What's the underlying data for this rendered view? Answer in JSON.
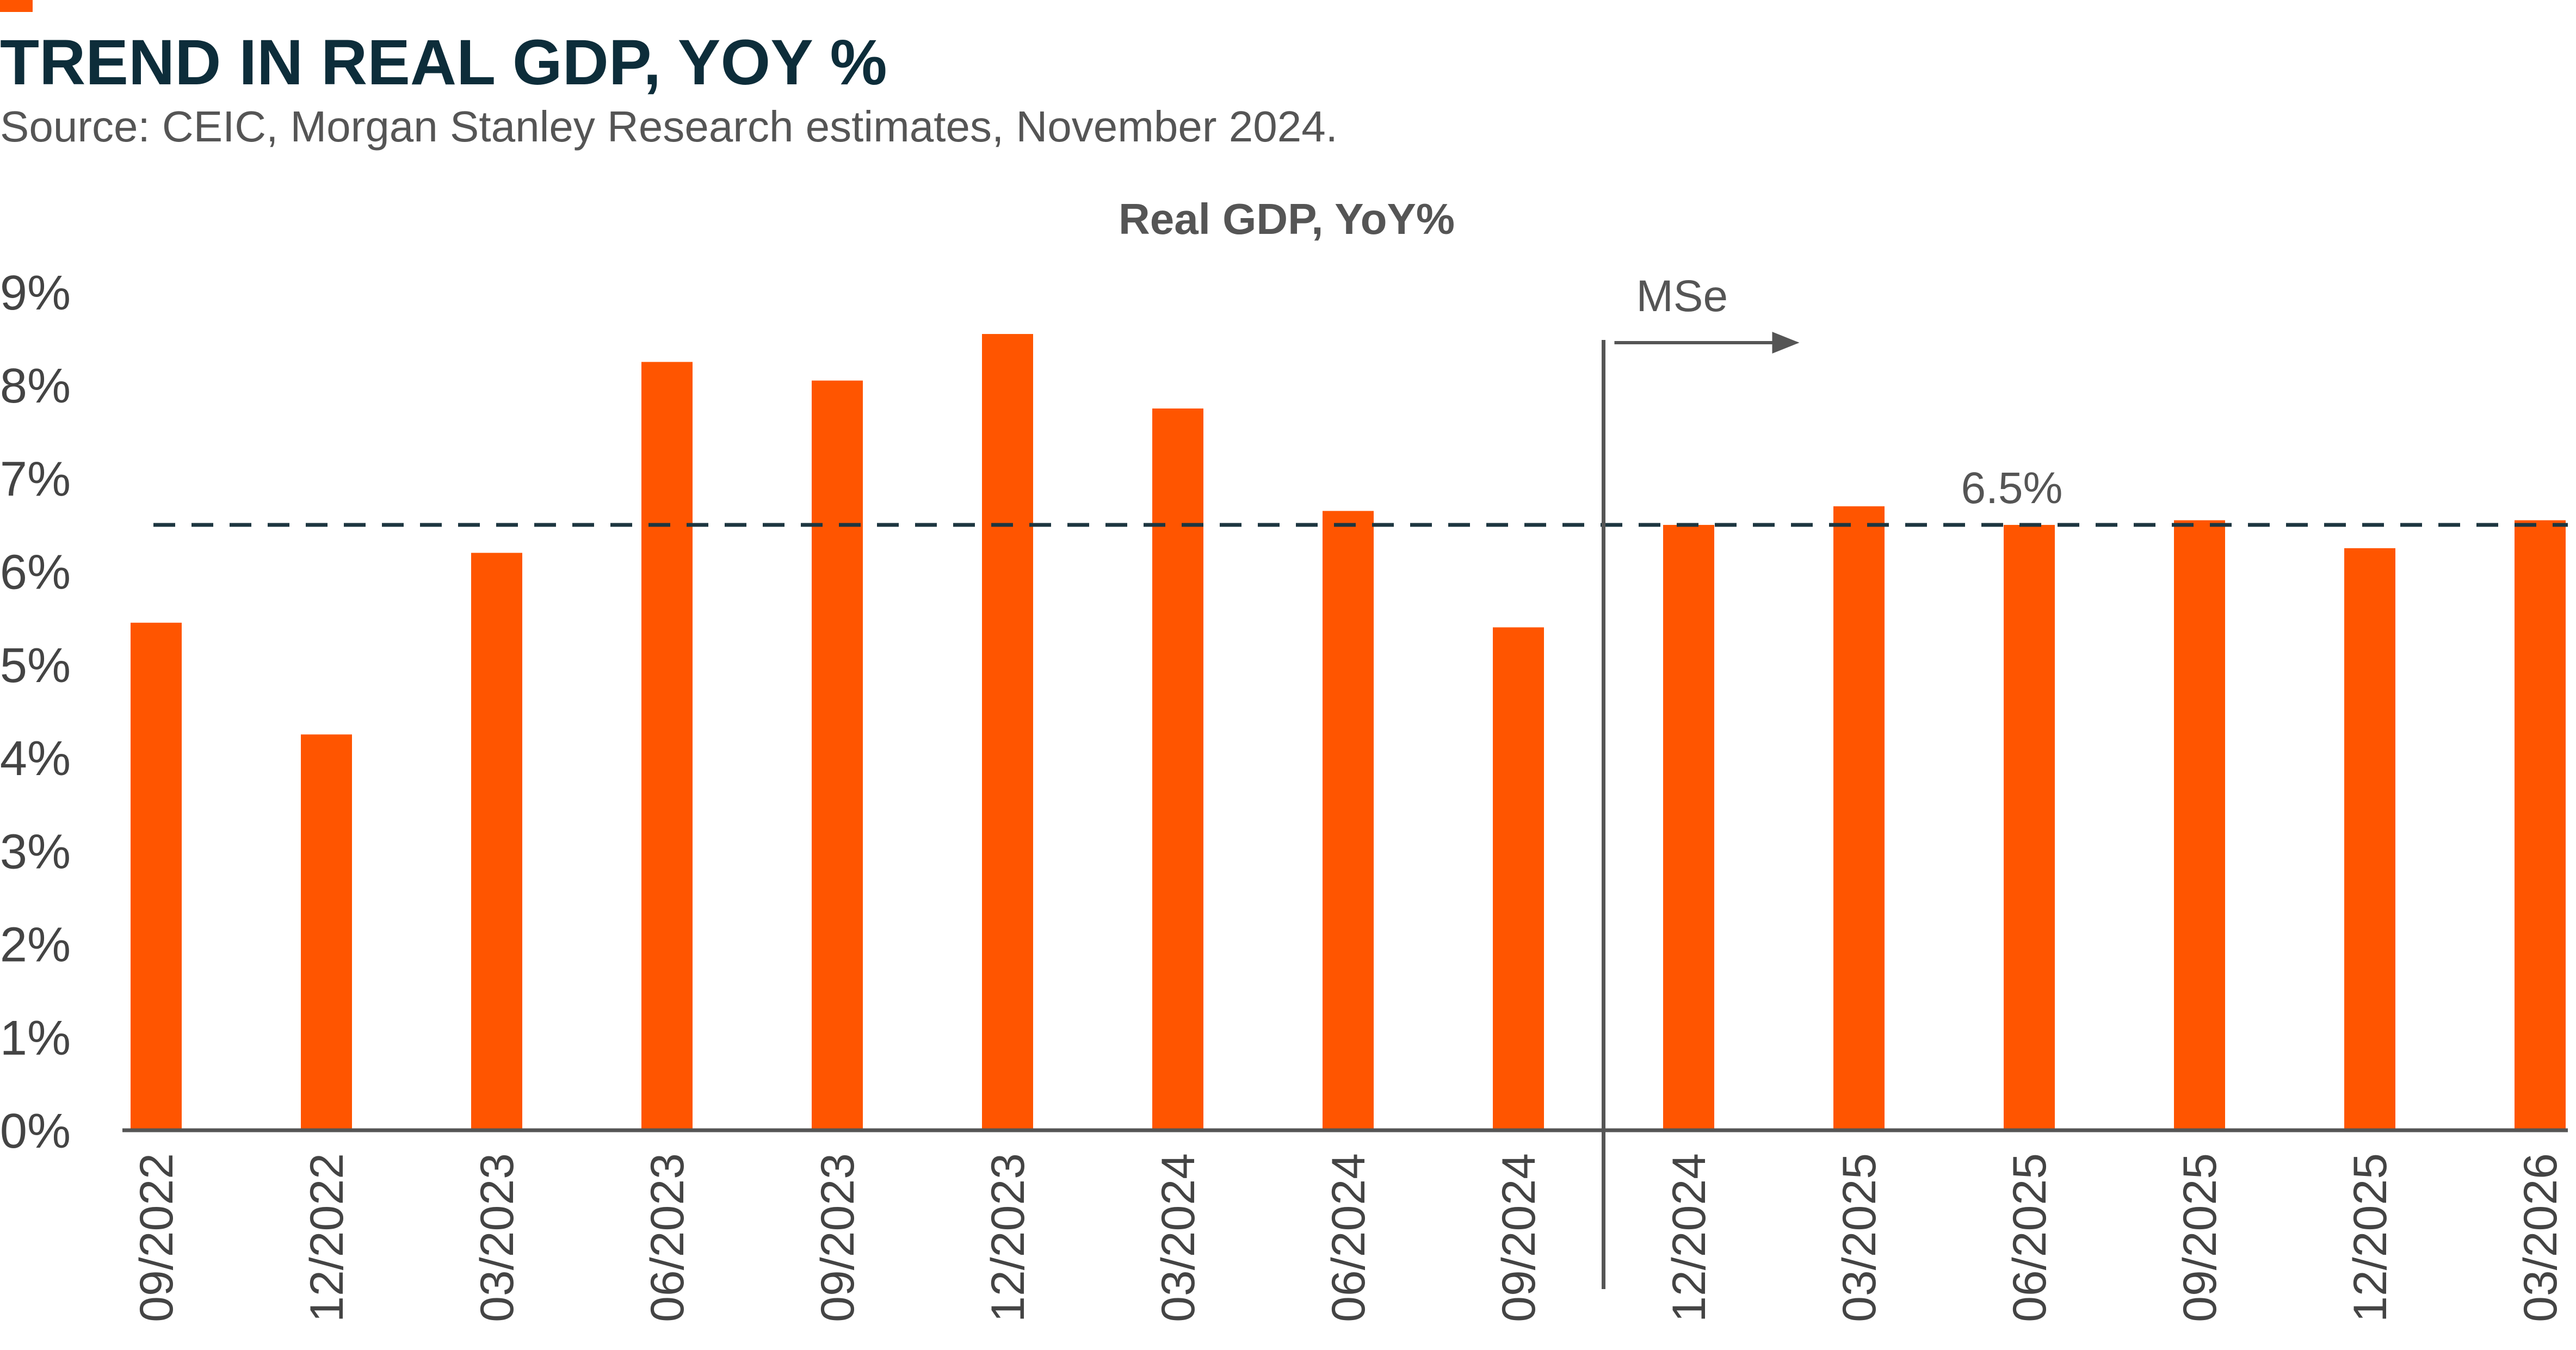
{
  "header": {
    "title": "TREND IN REAL GDP, YOY %",
    "subtitle": "Source: CEIC, Morgan Stanley Research estimates, November 2024."
  },
  "chart_data": {
    "type": "bar",
    "title": "Real GDP, YoY%",
    "xlabel": "",
    "ylabel": "",
    "categories": [
      "09/2022",
      "12/2022",
      "03/2023",
      "06/2023",
      "09/2023",
      "12/2023",
      "03/2024",
      "06/2024",
      "09/2024",
      "12/2024",
      "03/2025",
      "06/2025",
      "09/2025",
      "12/2025",
      "03/2026"
    ],
    "values": [
      5.45,
      4.25,
      6.2,
      8.25,
      8.05,
      8.55,
      7.75,
      6.65,
      5.4,
      6.5,
      6.7,
      6.5,
      6.55,
      6.25,
      6.55
    ],
    "ylim": [
      0,
      9
    ],
    "yticks": [
      "0%",
      "1%",
      "2%",
      "3%",
      "4%",
      "5%",
      "6%",
      "7%",
      "8%",
      "9%"
    ],
    "grid": false,
    "legend": "none",
    "bar_color": "#ff5500",
    "reference_line": {
      "value": 6.5,
      "label": "6.5%",
      "style": "dashed",
      "color": "#1d3640"
    },
    "forecast_divider": {
      "after_category": "09/2024",
      "label": "MSe"
    }
  },
  "colors": {
    "accent": "#ff5500",
    "title": "#0d2d3a",
    "text": "#555555",
    "axis": "#555555"
  }
}
